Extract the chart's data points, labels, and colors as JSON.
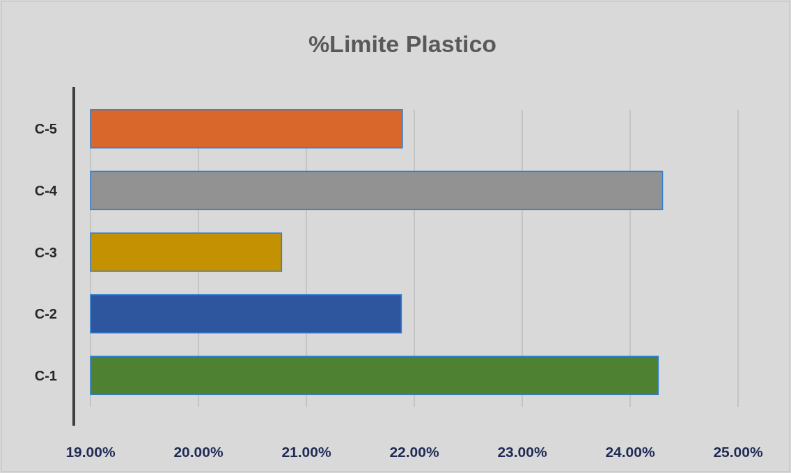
{
  "chart_data": {
    "type": "bar",
    "orientation": "horizontal",
    "title": "%Limite Plastico",
    "categories": [
      "C-5",
      "C-4",
      "C-3",
      "C-2",
      "C-1"
    ],
    "values": [
      21.89,
      24.3,
      20.77,
      21.88,
      24.26
    ],
    "colors": [
      "#d9662a",
      "#929292",
      "#c49102",
      "#2e569f",
      "#4f8132"
    ],
    "xlim": [
      19,
      25
    ],
    "xticks": [
      {
        "value": 19,
        "label": "19.00%"
      },
      {
        "value": 20,
        "label": "20.00%"
      },
      {
        "value": 21,
        "label": "21.00%"
      },
      {
        "value": 22,
        "label": "22.00%"
      },
      {
        "value": 23,
        "label": "23.00%"
      },
      {
        "value": 24,
        "label": "24.00%"
      },
      {
        "value": 25,
        "label": "25.00%"
      }
    ],
    "grid": "x"
  }
}
